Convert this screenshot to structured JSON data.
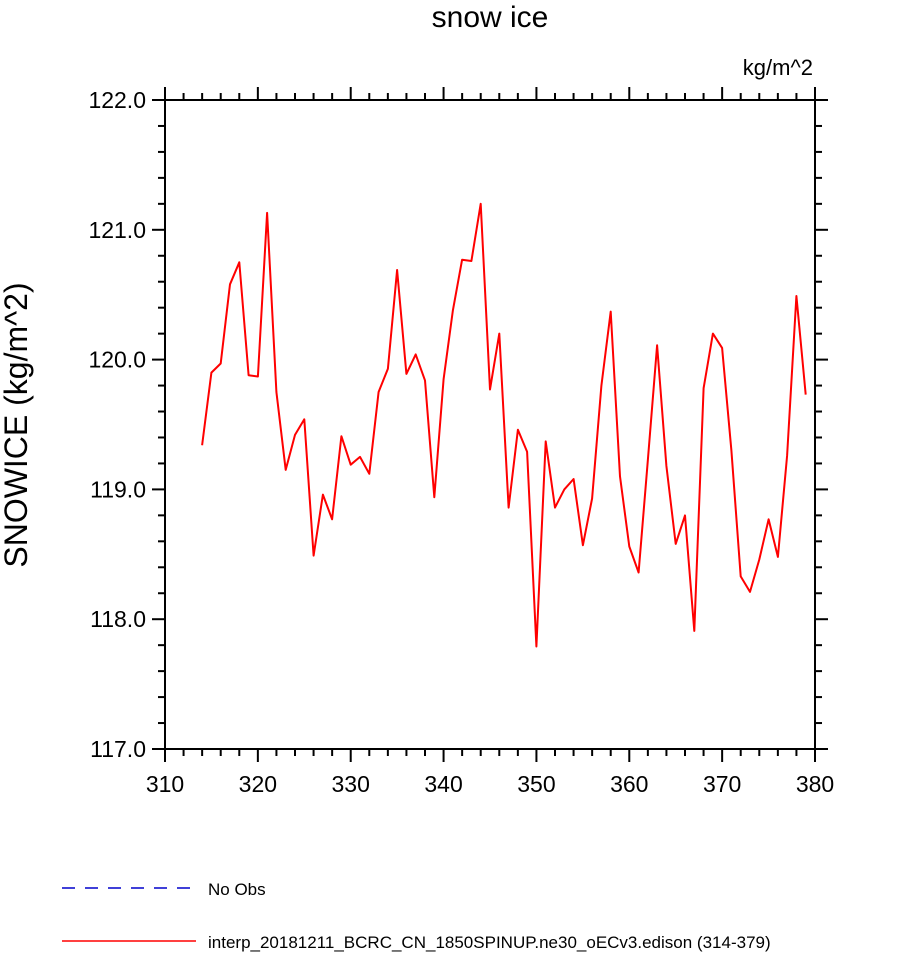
{
  "chart_data": {
    "type": "line",
    "title": "snow ice",
    "units_label": "kg/m^2",
    "xlabel": "",
    "ylabel": "SNOWICE  (kg/m^2)",
    "xlim": [
      310,
      380
    ],
    "ylim": [
      117.0,
      122.0
    ],
    "xticks": [
      "310",
      "320",
      "330",
      "340",
      "350",
      "360",
      "370",
      "380"
    ],
    "yticks": [
      "117.0",
      "118.0",
      "119.0",
      "120.0",
      "121.0",
      "122.0"
    ],
    "series": [
      {
        "name": "interp_20181211_BCRC_CN_1850SPINUP.ne30_oECv3.edison (314-379)",
        "color": "#ff0000",
        "x": [
          314,
          315,
          316,
          317,
          318,
          319,
          320,
          321,
          322,
          323,
          324,
          325,
          326,
          327,
          328,
          329,
          330,
          331,
          332,
          333,
          334,
          335,
          336,
          337,
          338,
          339,
          340,
          341,
          342,
          343,
          344,
          345,
          346,
          347,
          348,
          349,
          350,
          351,
          352,
          353,
          354,
          355,
          356,
          357,
          358,
          359,
          360,
          361,
          362,
          363,
          364,
          365,
          366,
          367,
          368,
          369,
          370,
          371,
          372,
          373,
          374,
          375,
          376,
          377,
          378,
          379
        ],
        "y": [
          119.34,
          119.9,
          119.97,
          120.58,
          120.75,
          119.88,
          119.87,
          121.13,
          119.75,
          119.15,
          119.42,
          119.54,
          118.49,
          118.96,
          118.77,
          119.41,
          119.19,
          119.25,
          119.12,
          119.75,
          119.93,
          120.69,
          119.89,
          120.04,
          119.84,
          118.94,
          119.85,
          120.38,
          120.77,
          120.76,
          121.2,
          119.77,
          120.2,
          118.86,
          119.46,
          119.29,
          117.79,
          119.37,
          118.86,
          119.0,
          119.08,
          118.57,
          118.93,
          119.8,
          120.37,
          119.1,
          118.56,
          118.36,
          119.23,
          120.11,
          119.18,
          118.58,
          118.8,
          117.91,
          119.78,
          120.2,
          120.09,
          119.3,
          118.33,
          118.21,
          118.46,
          118.77,
          118.48,
          119.26,
          120.49,
          119.73
        ]
      },
      {
        "name": "No Obs",
        "color": "#0000cc",
        "dashed": true,
        "x": [],
        "y": []
      }
    ],
    "legend": [
      "No Obs",
      "interp_20181211_BCRC_CN_1850SPINUP.ne30_oECv3.edison (314-379)"
    ]
  }
}
